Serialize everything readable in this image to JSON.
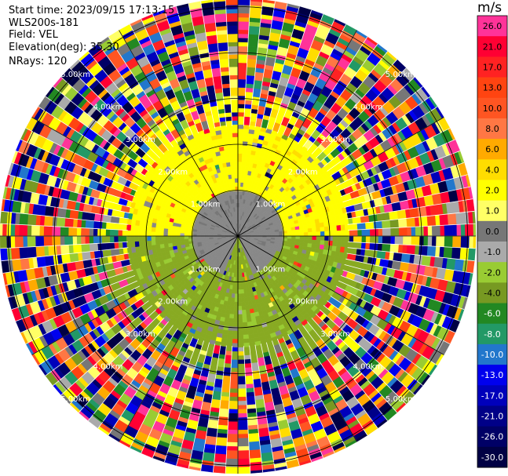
{
  "header": {
    "start_time": "Start time: 2023/09/15 17:13:15",
    "instrument": "WLS200s-181",
    "field": "Field: VEL",
    "elevation": "Elevation(deg): 35.30",
    "nrays": "NRays: 120"
  },
  "colorbar": {
    "unit": "m/s",
    "levels": [
      {
        "label": "26.0",
        "color": "#ff3399"
      },
      {
        "label": "21.0",
        "color": "#ff0033"
      },
      {
        "label": "17.0",
        "color": "#ff2222"
      },
      {
        "label": "13.0",
        "color": "#ff4411"
      },
      {
        "label": "10.0",
        "color": "#ff5522"
      },
      {
        "label": "8.0",
        "color": "#ff7744"
      },
      {
        "label": "6.0",
        "color": "#ffaa00"
      },
      {
        "label": "4.0",
        "color": "#ffdd00"
      },
      {
        "label": "2.0",
        "color": "#ffff00"
      },
      {
        "label": "1.0",
        "color": "#ffff66"
      },
      {
        "label": "0.0",
        "color": "#777777"
      },
      {
        "label": "-1.0",
        "color": "#aaaaaa"
      },
      {
        "label": "-2.0",
        "color": "#99cc33"
      },
      {
        "label": "-4.0",
        "color": "#779922"
      },
      {
        "label": "-6.0",
        "color": "#228822"
      },
      {
        "label": "-8.0",
        "color": "#229966"
      },
      {
        "label": "-10.0",
        "color": "#2277cc"
      },
      {
        "label": "-13.0",
        "color": "#0000ee"
      },
      {
        "label": "-17.0",
        "color": "#0000bb"
      },
      {
        "label": "-21.0",
        "color": "#000088"
      },
      {
        "label": "-26.0",
        "color": "#000066"
      },
      {
        "label": "-30.0",
        "color": "#000044"
      }
    ]
  },
  "range_rings": {
    "labels": [
      "1.00km",
      "2.00km",
      "3.00km",
      "4.00km",
      "5.00km"
    ]
  },
  "chart_data": {
    "type": "heatmap",
    "title": "",
    "field": "VEL",
    "units": "m/s",
    "scan": "PPI",
    "elevation_deg": 35.3,
    "nrays": 120,
    "range_rings_km": [
      1,
      2,
      3,
      4,
      5
    ],
    "spokes_deg": [
      0,
      30,
      60,
      90,
      120,
      150,
      180,
      210,
      240,
      270,
      300,
      330
    ],
    "value_range": [
      -30.0,
      26.0
    ],
    "regions": [
      {
        "range_km": [
          0,
          1.0
        ],
        "azimuth_deg": [
          270,
          90
        ],
        "dominant_velocity_ms": 0.0,
        "description": "gray near-zero core"
      },
      {
        "range_km": [
          0,
          2.0
        ],
        "azimuth_deg": [
          90,
          270
        ],
        "dominant_velocity_ms": -2.0,
        "description": "olive-green receding"
      },
      {
        "range_km": [
          0.8,
          2.5
        ],
        "azimuth_deg": [
          270,
          90
        ],
        "dominant_velocity_ms": 2.0,
        "description": "yellow approaching"
      },
      {
        "range_km": [
          2.5,
          5.2
        ],
        "azimuth_deg": [
          0,
          360
        ],
        "dominant_velocity_ms": null,
        "description": "noisy multicolor beyond valid range"
      }
    ]
  }
}
